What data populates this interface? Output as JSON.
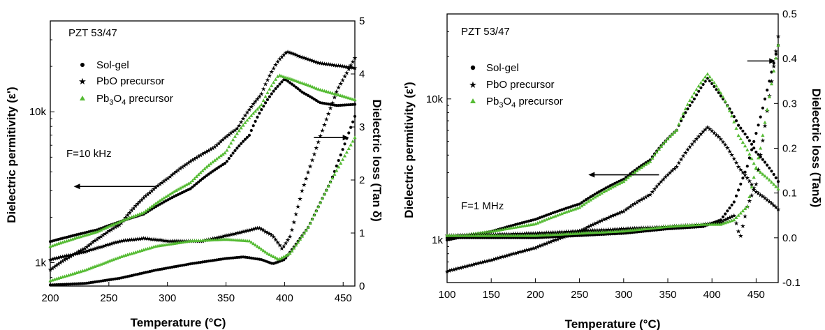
{
  "chart_data": [
    {
      "type": "scatter",
      "title": "",
      "annotation_material": "PZT 53/47",
      "annotation_frequency": "F=10 kHz",
      "xlabel": "Temperature (°C)",
      "ylabel_left": "Dielectric permitivity (ε')",
      "ylabel_right": "Dielectric loss (Tan δ)",
      "xlim": [
        200,
        460
      ],
      "left_axis_scale": "log",
      "left_ylim": [
        700,
        40000
      ],
      "right_ylim": [
        0,
        5
      ],
      "xticks": [
        "200",
        "250",
        "300",
        "350",
        "400",
        "450"
      ],
      "left_yticks": [
        "1k",
        "10k"
      ],
      "right_yticks": [
        "0",
        "1",
        "2",
        "3",
        "4",
        "5"
      ],
      "legend_position": "top-left",
      "legend": [
        "Sol-gel",
        "PbO precursor",
        "Pb3O4 precursor"
      ],
      "arrows": [
        {
          "points_to": "left axis",
          "at_x": [
            290,
            220
          ],
          "at_y_permittivity": 3200
        },
        {
          "points_to": "right axis",
          "at_x": [
            425,
            455
          ],
          "at_y_loss": 2.8
        }
      ],
      "series": [
        {
          "name": "Sol-gel",
          "axis": "left",
          "color": "#000000",
          "marker": "circle",
          "x": [
            200,
            240,
            280,
            320,
            350,
            370,
            390,
            400,
            415,
            430,
            445,
            460
          ],
          "y": [
            1380,
            1650,
            2100,
            3100,
            4600,
            7000,
            13500,
            16500,
            13500,
            11500,
            11000,
            11200
          ]
        },
        {
          "name": "PbO precursor",
          "axis": "left",
          "color": "#ee2222",
          "marker": "star",
          "x": [
            200,
            230,
            260,
            280,
            300,
            320,
            340,
            360,
            380,
            395,
            402,
            415,
            430,
            460
          ],
          "y": [
            900,
            1250,
            1800,
            2700,
            3600,
            4700,
            5800,
            7800,
            13000,
            22000,
            25000,
            23000,
            21000,
            19500
          ]
        },
        {
          "name": "Pb3O4 precursor",
          "axis": "left",
          "color": "#55bb33",
          "marker": "triangle",
          "x": [
            200,
            240,
            280,
            320,
            350,
            380,
            395,
            410,
            430,
            460
          ],
          "y": [
            1280,
            1600,
            2150,
            3400,
            5400,
            11000,
            17500,
            16000,
            14000,
            12000
          ]
        },
        {
          "name": "Sol-gel",
          "axis": "right",
          "color": "#000000",
          "marker": "circle",
          "x": [
            200,
            230,
            260,
            290,
            320,
            350,
            365,
            380,
            390,
            400,
            420,
            440,
            460
          ],
          "y": [
            0.02,
            0.05,
            0.15,
            0.3,
            0.42,
            0.52,
            0.55,
            0.5,
            0.42,
            0.5,
            1.1,
            2.0,
            3.2
          ]
        },
        {
          "name": "PbO precursor",
          "axis": "right",
          "color": "#ee2222",
          "marker": "star",
          "x": [
            200,
            230,
            260,
            280,
            300,
            330,
            360,
            378,
            390,
            398,
            405,
            415,
            430,
            445,
            460
          ],
          "y": [
            0.5,
            0.65,
            0.85,
            0.9,
            0.85,
            0.85,
            1.0,
            1.1,
            0.95,
            0.7,
            0.95,
            1.8,
            2.8,
            3.7,
            4.3
          ]
        },
        {
          "name": "Pb3O4 precursor",
          "axis": "right",
          "color": "#55bb33",
          "marker": "triangle",
          "x": [
            200,
            230,
            260,
            290,
            320,
            350,
            370,
            385,
            395,
            405,
            420,
            440,
            460
          ],
          "y": [
            0.1,
            0.3,
            0.55,
            0.75,
            0.85,
            0.88,
            0.85,
            0.62,
            0.5,
            0.62,
            1.1,
            2.0,
            2.8
          ]
        }
      ]
    },
    {
      "type": "scatter",
      "title": "",
      "annotation_material": "PZT 53/47",
      "annotation_frequency": "F=1 MHz",
      "xlabel": "Temperature (°C)",
      "ylabel_left": "Dielectric permitivity (ε')",
      "ylabel_right": "Dielectric loss (Tanδ)",
      "xlim": [
        100,
        475
      ],
      "left_axis_scale": "log",
      "left_ylim": [
        500,
        40000
      ],
      "right_ylim": [
        -0.1,
        0.5
      ],
      "xticks": [
        "100",
        "150",
        "200",
        "250",
        "300",
        "350",
        "400",
        "450"
      ],
      "left_yticks": [
        "1k",
        "10k"
      ],
      "right_yticks": [
        "-0.1",
        "0.0",
        "0.1",
        "0.2",
        "0.3",
        "0.4",
        "0.5"
      ],
      "legend_position": "top-left",
      "legend": [
        "Sol-gel",
        "PbO precursor",
        "Pb3O4 precursor"
      ],
      "arrows": [
        {
          "points_to": "left axis",
          "at_x": [
            340,
            260
          ],
          "at_y_permittivity": 2900
        },
        {
          "points_to": "right axis",
          "at_x": [
            440,
            472
          ],
          "at_y_loss": 0.395
        }
      ],
      "series": [
        {
          "name": "Sol-gel",
          "axis": "left",
          "color": "#000000",
          "marker": "circle",
          "x": [
            100,
            150,
            200,
            250,
            300,
            330,
            360,
            380,
            395,
            410,
            430,
            450,
            475
          ],
          "y": [
            1000,
            1150,
            1400,
            1800,
            2700,
            3700,
            6000,
            10000,
            14000,
            10500,
            6500,
            4200,
            2600
          ]
        },
        {
          "name": "PbO precursor",
          "axis": "left",
          "color": "#ee2222",
          "marker": "star",
          "x": [
            100,
            150,
            200,
            250,
            300,
            330,
            360,
            380,
            395,
            410,
            430,
            450,
            475
          ],
          "y": [
            600,
            720,
            880,
            1150,
            1600,
            2100,
            3300,
            5000,
            6300,
            5200,
            3300,
            2200,
            1650
          ]
        },
        {
          "name": "Pb3O4 precursor",
          "axis": "left",
          "color": "#55bb33",
          "marker": "triangle",
          "x": [
            100,
            150,
            200,
            250,
            300,
            330,
            360,
            380,
            395,
            410,
            430,
            450,
            475
          ],
          "y": [
            1050,
            1150,
            1300,
            1700,
            2600,
            3600,
            6000,
            11000,
            15000,
            11000,
            5500,
            3200,
            2300
          ]
        },
        {
          "name": "Sol-gel",
          "axis": "right",
          "color": "#000000",
          "marker": "circle",
          "x": [
            100,
            200,
            300,
            350,
            390,
            410,
            425,
            440,
            455,
            475
          ],
          "y": [
            0.0,
            0.0,
            0.01,
            0.02,
            0.025,
            0.04,
            0.08,
            0.16,
            0.27,
            0.43
          ]
        },
        {
          "name": "PbO precursor",
          "axis": "right",
          "color": "#ee2222",
          "marker": "star",
          "x": [
            100,
            200,
            300,
            350,
            390,
            410,
            425,
            432,
            440,
            450,
            460,
            475
          ],
          "y": [
            0.005,
            0.01,
            0.02,
            0.025,
            0.03,
            0.035,
            0.05,
            0.0,
            0.07,
            0.12,
            0.25,
            0.45
          ]
        },
        {
          "name": "Pb3O4 precursor",
          "axis": "right",
          "color": "#55bb33",
          "marker": "triangle",
          "x": [
            100,
            200,
            300,
            350,
            390,
            410,
            425,
            440,
            455,
            475
          ],
          "y": [
            0.005,
            0.005,
            0.015,
            0.025,
            0.03,
            0.03,
            0.04,
            0.07,
            0.2,
            0.43
          ]
        }
      ]
    }
  ]
}
